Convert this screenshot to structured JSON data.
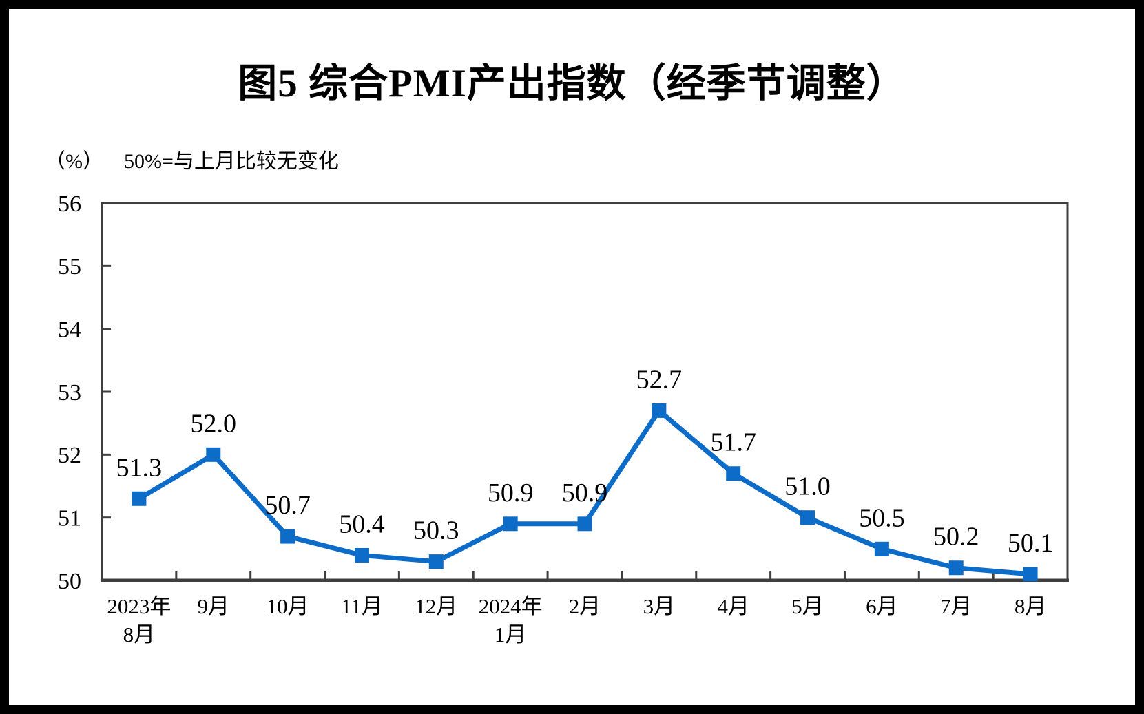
{
  "page": {
    "background": "#ffffff",
    "frame_color": "#000000"
  },
  "header": {
    "title": "图5  综合PMI产出指数（经季节调整）"
  },
  "axis_note": {
    "unit": "（%）",
    "text": "50%=与上月比较无变化"
  },
  "chart_data": {
    "type": "line",
    "title": "图5  综合PMI产出指数（经季节调整）",
    "unit_label": "（%）",
    "annotation": "50%=与上月比较无变化",
    "categories": [
      [
        "2023年",
        "8月"
      ],
      [
        "9月"
      ],
      [
        "10月"
      ],
      [
        "11月"
      ],
      [
        "12月"
      ],
      [
        "2024年",
        "1月"
      ],
      [
        "2月"
      ],
      [
        "3月"
      ],
      [
        "4月"
      ],
      [
        "5月"
      ],
      [
        "6月"
      ],
      [
        "7月"
      ],
      [
        "8月"
      ]
    ],
    "series": [
      {
        "name": "综合PMI产出指数（经季节调整）",
        "values": [
          51.3,
          52.0,
          50.7,
          50.4,
          50.3,
          50.9,
          50.9,
          52.7,
          51.7,
          51.0,
          50.5,
          50.2,
          50.1
        ],
        "color": "#0D6CC8",
        "marker": "square"
      }
    ],
    "ylim": [
      50,
      56
    ],
    "yticks": [
      50,
      51,
      52,
      53,
      54,
      55,
      56
    ],
    "grid": false,
    "legend": "none",
    "data_labels": true,
    "axis_color": "#3F3F3F",
    "label_color": "#000000"
  }
}
